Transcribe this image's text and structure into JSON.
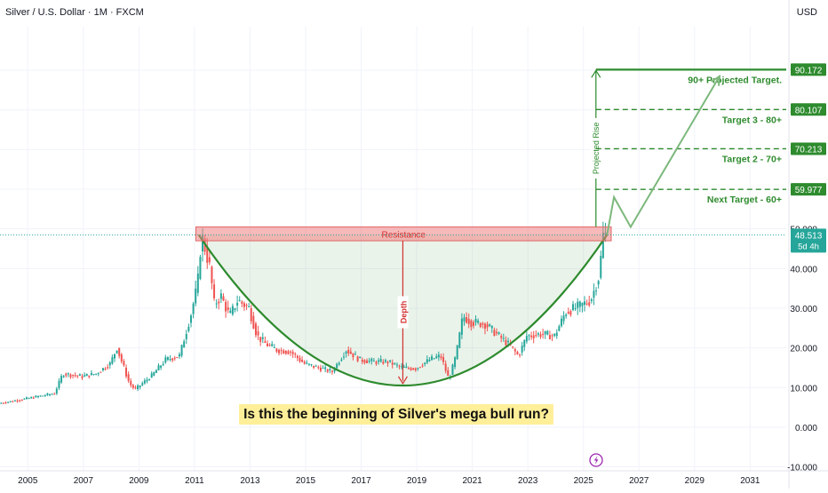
{
  "header": {
    "symbol_line": "Silver / U.S. Dollar · 1M · FXCM",
    "currency": "USD"
  },
  "chart_data": {
    "type": "candlestick",
    "title": "Silver / U.S. Dollar · 1M · FXCM",
    "x_ticks": [
      "2005",
      "2007",
      "2009",
      "2011",
      "2013",
      "2015",
      "2017",
      "2019",
      "2021",
      "2023",
      "2025",
      "2027",
      "2029",
      "2031"
    ],
    "y_ticks": [
      "90.000",
      "80.000",
      "70.000",
      "60.000",
      "50.000",
      "40.000",
      "30.000",
      "20.000",
      "10.000",
      "0.000",
      "-10.000"
    ],
    "ylim": [
      -11,
      101
    ],
    "price_path": [
      [
        2004.0,
        6.0
      ],
      [
        2005.0,
        7.2
      ],
      [
        2006.0,
        8.5
      ],
      [
        2006.3,
        13.5
      ],
      [
        2007.0,
        12.8
      ],
      [
        2007.5,
        13.5
      ],
      [
        2008.0,
        16.0
      ],
      [
        2008.25,
        20.0
      ],
      [
        2008.7,
        11.0
      ],
      [
        2008.9,
        9.5
      ],
      [
        2009.5,
        13.0
      ],
      [
        2010.0,
        17.0
      ],
      [
        2010.5,
        18.0
      ],
      [
        2010.9,
        28.0
      ],
      [
        2011.15,
        36.0
      ],
      [
        2011.3,
        48.5
      ],
      [
        2011.6,
        40.0
      ],
      [
        2011.75,
        31.0
      ],
      [
        2012.0,
        33.0
      ],
      [
        2012.3,
        28.0
      ],
      [
        2012.6,
        32.0
      ],
      [
        2013.0,
        30.0
      ],
      [
        2013.3,
        23.0
      ],
      [
        2013.6,
        21.0
      ],
      [
        2014.0,
        19.5
      ],
      [
        2014.5,
        19.0
      ],
      [
        2015.0,
        16.0
      ],
      [
        2015.5,
        15.0
      ],
      [
        2016.0,
        14.0
      ],
      [
        2016.5,
        19.5
      ],
      [
        2017.0,
        17.0
      ],
      [
        2017.5,
        16.5
      ],
      [
        2018.0,
        16.5
      ],
      [
        2018.5,
        15.0
      ],
      [
        2019.0,
        14.8
      ],
      [
        2019.5,
        17.0
      ],
      [
        2019.9,
        18.0
      ],
      [
        2020.2,
        12.0
      ],
      [
        2020.45,
        18.0
      ],
      [
        2020.7,
        28.0
      ],
      [
        2021.0,
        26.5
      ],
      [
        2021.5,
        26.0
      ],
      [
        2022.0,
        23.0
      ],
      [
        2022.4,
        20.5
      ],
      [
        2022.7,
        18.0
      ],
      [
        2023.0,
        23.0
      ],
      [
        2023.5,
        23.5
      ],
      [
        2024.0,
        23.0
      ],
      [
        2024.4,
        29.0
      ],
      [
        2024.9,
        30.5
      ],
      [
        2025.3,
        32.0
      ],
      [
        2025.6,
        38.0
      ],
      [
        2025.75,
        48.5
      ]
    ],
    "last_price": "48.513",
    "countdown": "5d 4h",
    "resistance": {
      "label": "Resistance",
      "low": 47.0,
      "high": 50.5,
      "x_start": 2011.05,
      "x_end": 2026.0
    },
    "cup": {
      "x_start": 2011.15,
      "x_bottom": 2018.5,
      "y_bottom": 10.5,
      "x_end": 2025.85,
      "y_rim": 48.5
    },
    "depth": {
      "label": "Depth",
      "x": 2018.5,
      "y_top": 47.0,
      "y_bottom": 11.0
    },
    "projected_rise": {
      "label": "Projected Rise",
      "x": 2025.45,
      "y_bottom": 50.5,
      "y_top": 90.172
    },
    "projection_path": [
      [
        2025.85,
        48.5
      ],
      [
        2026.1,
        58.0
      ],
      [
        2026.7,
        50.5
      ],
      [
        2029.9,
        88.5
      ]
    ],
    "targets": [
      {
        "value": 90.172,
        "price_label": "90.172",
        "text": "90+ Projected Target.",
        "dashed": false
      },
      {
        "value": 80.107,
        "price_label": "80.107",
        "text": "Target 3 - 80+",
        "dashed": true
      },
      {
        "value": 70.213,
        "price_label": "70.213",
        "text": "Target 2 - 70+",
        "dashed": true
      },
      {
        "value": 59.977,
        "price_label": "59.977",
        "text": "Next Target - 60+",
        "dashed": true
      }
    ],
    "caption": "Is this the beginning of Silver's mega bull run?",
    "colors": {
      "up": "#26a69a",
      "down": "#ef5350",
      "cup": "#2e8b2e",
      "resistance": "#f08080",
      "target_label_bg": "#2e8b2e",
      "caption_bg": "#ffef99"
    }
  }
}
